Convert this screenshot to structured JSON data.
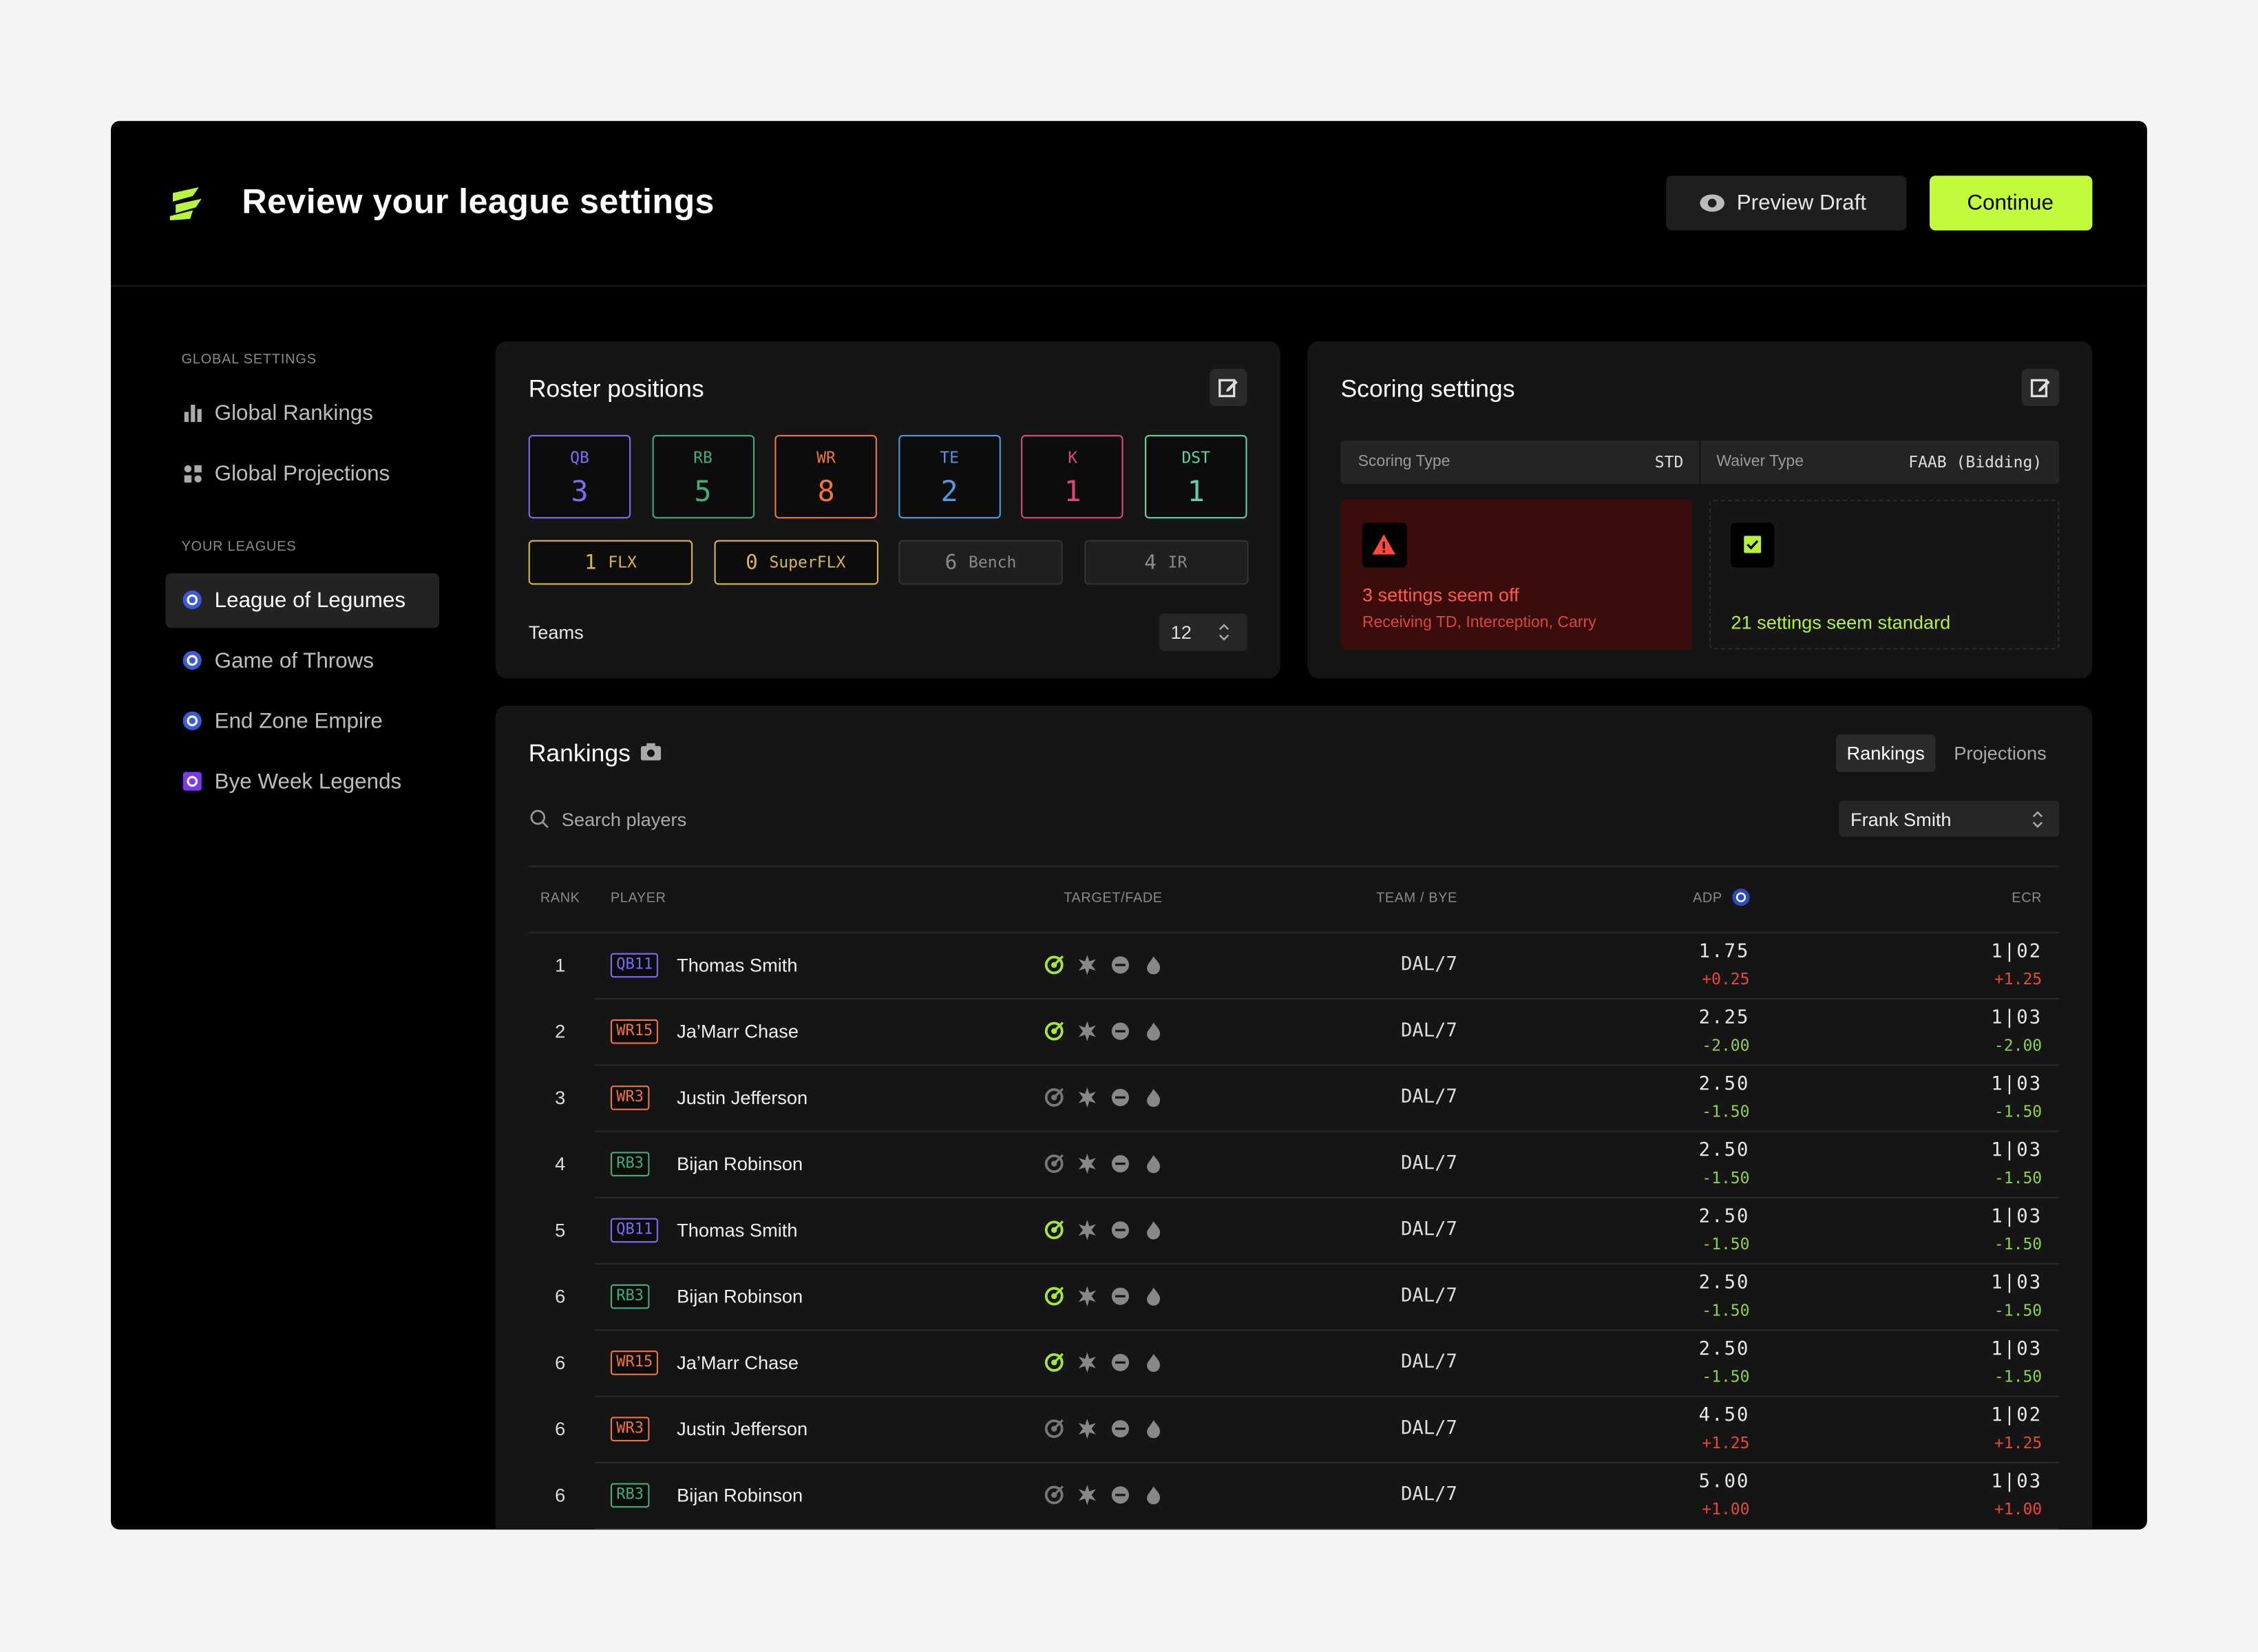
{
  "header": {
    "title": "Review your league settings",
    "preview_button": "Preview Draft",
    "continue_button": "Continue"
  },
  "sidebar": {
    "global_heading": "GLOBAL SETTINGS",
    "global_items": [
      "Global Rankings",
      "Global Projections"
    ],
    "leagues_heading": "YOUR LEAGUES",
    "leagues": [
      {
        "name": "League of Legumes",
        "selected": true,
        "icon_color": "#3b5bdb"
      },
      {
        "name": "Game of Throws",
        "selected": false,
        "icon_color": "#3b5bdb"
      },
      {
        "name": "End Zone Empire",
        "selected": false,
        "icon_color": "#3b5bdb"
      },
      {
        "name": "Bye Week Legends",
        "selected": false,
        "icon_color": "#7c3aed"
      }
    ]
  },
  "position_colors": {
    "QB": "#7b6cf6",
    "RB": "#3fae7a",
    "WR": "#f0743e",
    "TE": "#4c9be8",
    "K": "#e0457b",
    "DST": "#5fd3a8"
  },
  "roster": {
    "title": "Roster positions",
    "positions": [
      {
        "label": "QB",
        "count": 3
      },
      {
        "label": "RB",
        "count": 5
      },
      {
        "label": "WR",
        "count": 8
      },
      {
        "label": "TE",
        "count": 2
      },
      {
        "label": "K",
        "count": 1
      },
      {
        "label": "DST",
        "count": 1
      }
    ],
    "extras": [
      {
        "count": 1,
        "label": "FLX",
        "color": "#d9b84a"
      },
      {
        "count": 0,
        "label": "SuperFLX",
        "color": "#d9b84a"
      },
      {
        "count": 6,
        "label": "Bench",
        "color": "#8a8a8a"
      },
      {
        "count": 4,
        "label": "IR",
        "color": "#8a8a8a"
      }
    ],
    "teams_label": "Teams",
    "teams": 12
  },
  "scoring": {
    "title": "Scoring settings",
    "scoring_type_label": "Scoring Type",
    "scoring_type": "STD",
    "waiver_type_label": "Waiver Type",
    "waiver_type": "FAAB (Bidding)",
    "warning": {
      "title": "3 settings seem off",
      "detail": "Receiving TD, Interception, Carry"
    },
    "ok": "21 settings seem standard"
  },
  "rankings": {
    "title": "Rankings",
    "tabs": [
      {
        "label": "Rankings",
        "active": true
      },
      {
        "label": "Projections",
        "active": false
      }
    ],
    "search_placeholder": "Search players",
    "user": "Frank Smith",
    "columns": [
      "RANK",
      "PLAYER",
      "TARGET/FADE",
      "TEAM / BYE",
      "ADP",
      "ECR"
    ],
    "rows": [
      {
        "rank": 1,
        "pos": "QB11",
        "player": "Thomas Smith",
        "target": true,
        "team": "DAL/7",
        "adp": "1.75",
        "adp_change": "+0.25",
        "ecr": "1|02",
        "ecr_change": "+1.25"
      },
      {
        "rank": 2,
        "pos": "WR15",
        "player": "Ja’Marr Chase",
        "target": true,
        "team": "DAL/7",
        "adp": "2.25",
        "adp_change": "-2.00",
        "ecr": "1|03",
        "ecr_change": "-2.00"
      },
      {
        "rank": 3,
        "pos": "WR3",
        "player": "Justin Jefferson",
        "target": false,
        "team": "DAL/7",
        "adp": "2.50",
        "adp_change": "-1.50",
        "ecr": "1|03",
        "ecr_change": "-1.50"
      },
      {
        "rank": 4,
        "pos": "RB3",
        "player": "Bijan Robinson",
        "target": false,
        "team": "DAL/7",
        "adp": "2.50",
        "adp_change": "-1.50",
        "ecr": "1|03",
        "ecr_change": "-1.50"
      },
      {
        "rank": 5,
        "pos": "QB11",
        "player": "Thomas Smith",
        "target": true,
        "team": "DAL/7",
        "adp": "2.50",
        "adp_change": "-1.50",
        "ecr": "1|03",
        "ecr_change": "-1.50"
      },
      {
        "rank": 6,
        "pos": "RB3",
        "player": "Bijan Robinson",
        "target": true,
        "team": "DAL/7",
        "adp": "2.50",
        "adp_change": "-1.50",
        "ecr": "1|03",
        "ecr_change": "-1.50"
      },
      {
        "rank": 6,
        "pos": "WR15",
        "player": "Ja’Marr Chase",
        "target": true,
        "team": "DAL/7",
        "adp": "2.50",
        "adp_change": "-1.50",
        "ecr": "1|03",
        "ecr_change": "-1.50"
      },
      {
        "rank": 6,
        "pos": "WR3",
        "player": "Justin Jefferson",
        "target": false,
        "team": "DAL/7",
        "adp": "4.50",
        "adp_change": "+1.25",
        "ecr": "1|02",
        "ecr_change": "+1.25"
      },
      {
        "rank": 6,
        "pos": "RB3",
        "player": "Bijan Robinson",
        "target": false,
        "team": "DAL/7",
        "adp": "5.00",
        "adp_change": "+1.00",
        "ecr": "1|03",
        "ecr_change": "+1.00"
      }
    ]
  }
}
